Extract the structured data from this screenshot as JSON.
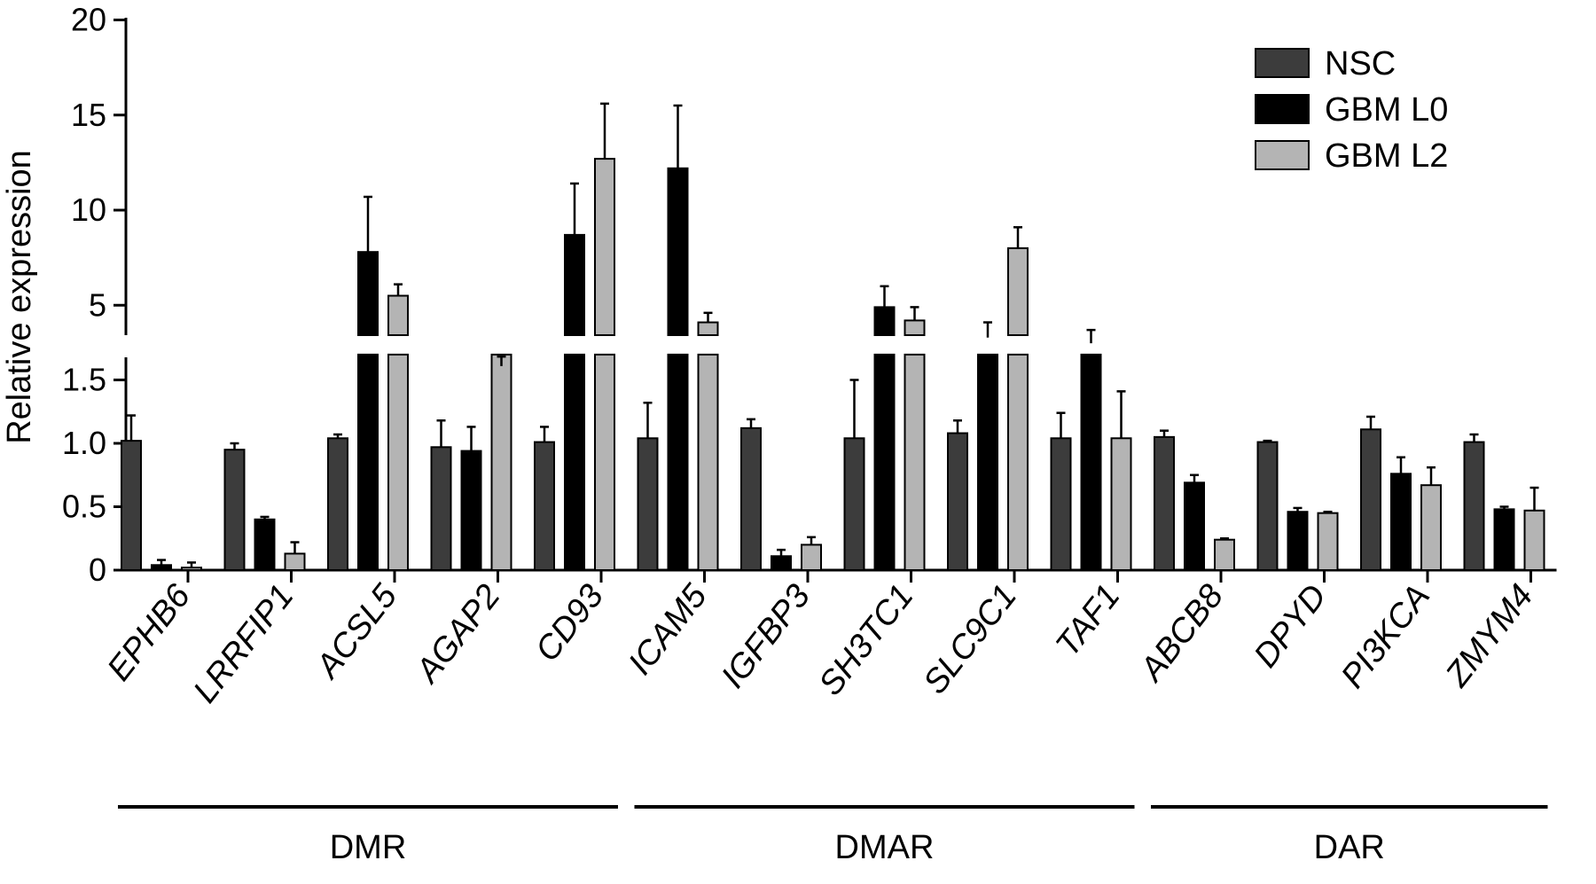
{
  "chart_data": {
    "type": "bar",
    "ylabel": "Relative expression",
    "categories": [
      "EPHB6",
      "LRRFIP1",
      "ACSL5",
      "AGAP2",
      "CD93",
      "ICAM5",
      "IGFBP3",
      "SH3TC1",
      "SLC9C1",
      "TAF1",
      "ABCB8",
      "DPYD",
      "PI3KCA",
      "ZMYM4"
    ],
    "series": [
      {
        "name": "NSC",
        "color": "#3c3c3c",
        "values": [
          1.02,
          0.95,
          1.04,
          0.97,
          1.01,
          1.04,
          1.12,
          1.04,
          1.08,
          1.04,
          1.05,
          1.01,
          1.11,
          1.01
        ],
        "errors": [
          0.2,
          0.05,
          0.03,
          0.21,
          0.12,
          0.28,
          0.07,
          0.46,
          0.1,
          0.2,
          0.05,
          0.01,
          0.1,
          0.06
        ]
      },
      {
        "name": "GBM L0",
        "color": "#000000",
        "values": [
          0.04,
          0.4,
          7.8,
          0.94,
          8.7,
          12.2,
          0.11,
          4.9,
          3.3,
          3.0,
          0.69,
          0.46,
          0.76,
          0.48
        ],
        "errors": [
          0.04,
          0.02,
          2.9,
          0.19,
          2.7,
          3.3,
          0.05,
          1.1,
          0.8,
          0.7,
          0.06,
          0.03,
          0.13,
          0.02
        ]
      },
      {
        "name": "GBM L2",
        "color": "#b4b4b4",
        "values": [
          0.02,
          0.13,
          5.5,
          1.8,
          12.7,
          4.1,
          0.2,
          4.2,
          8.0,
          1.04,
          0.24,
          0.45,
          0.67,
          0.47
        ],
        "errors": [
          0.04,
          0.09,
          0.6,
          0.5,
          2.9,
          0.5,
          0.06,
          0.7,
          1.1,
          0.37,
          0.01,
          0.01,
          0.14,
          0.18
        ]
      }
    ],
    "axis_lower": {
      "ylim": [
        0,
        1.7
      ],
      "ticks": [
        "0",
        "0.5",
        "1.0",
        "1.5"
      ]
    },
    "axis_upper": {
      "ylim": [
        1.7,
        20
      ],
      "ticks": [
        "5",
        "10",
        "15",
        "20"
      ]
    },
    "groups": [
      {
        "label": "DMR",
        "categories": [
          "EPHB6",
          "LRRFIP1",
          "ACSL5",
          "AGAP2",
          "CD93"
        ]
      },
      {
        "label": "DMAR",
        "categories": [
          "ICAM5",
          "IGFBP3",
          "SH3TC1",
          "SLC9C1",
          "TAF1"
        ]
      },
      {
        "label": "DAR",
        "categories": [
          "ABCB8",
          "DPYD",
          "PI3KCA",
          "ZMYM4"
        ]
      }
    ],
    "legend_position": "top-right",
    "grid": false
  }
}
